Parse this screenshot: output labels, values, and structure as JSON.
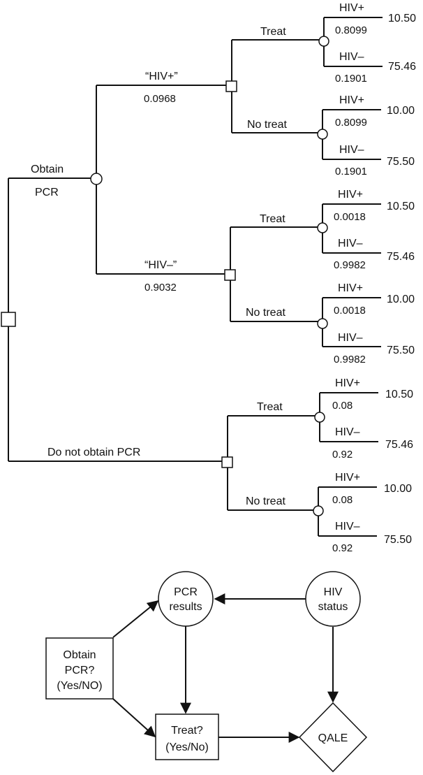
{
  "tree": {
    "root_branches": {
      "obtain_line1": "Obtain",
      "obtain_line2": "PCR",
      "do_not_obtain": "Do not obtain PCR"
    },
    "test_results": [
      {
        "label": "“HIV+”",
        "prob": "0.0968"
      },
      {
        "label": "“HIV–”",
        "prob": "0.9032"
      }
    ],
    "treat_label": "Treat",
    "no_treat_label": "No treat",
    "status_pos_label": "HIV+",
    "status_neg_label": "HIV–",
    "groups": [
      {
        "treat": {
          "pos_prob": "0.8099",
          "pos_value": "10.50",
          "neg_prob": "0.1901",
          "neg_value": "75.46"
        },
        "no_treat": {
          "pos_prob": "0.8099",
          "pos_value": "10.00",
          "neg_prob": "0.1901",
          "neg_value": "75.50"
        }
      },
      {
        "treat": {
          "pos_prob": "0.0018",
          "pos_value": "10.50",
          "neg_prob": "0.9982",
          "neg_value": "75.46"
        },
        "no_treat": {
          "pos_prob": "0.0018",
          "pos_value": "10.00",
          "neg_prob": "0.9982",
          "neg_value": "75.50"
        }
      },
      {
        "treat": {
          "pos_prob": "0.08",
          "pos_value": "10.50",
          "neg_prob": "0.92",
          "neg_value": "75.46"
        },
        "no_treat": {
          "pos_prob": "0.08",
          "pos_value": "10.00",
          "neg_prob": "0.92",
          "neg_value": "75.50"
        }
      }
    ]
  },
  "influence": {
    "pcr_results_line1": "PCR",
    "pcr_results_line2": "results",
    "hiv_status_line1": "HIV",
    "hiv_status_line2": "status",
    "obtain_line1": "Obtain",
    "obtain_line2": "PCR?",
    "obtain_line3": "(Yes/NO)",
    "treat_line1": "Treat?",
    "treat_line2": "(Yes/No)",
    "qale": "QALE"
  }
}
